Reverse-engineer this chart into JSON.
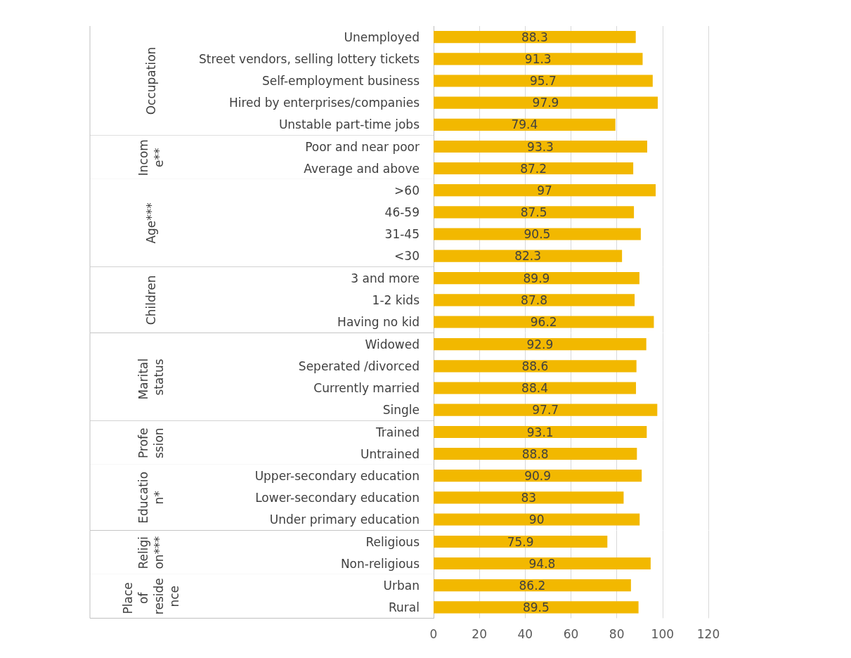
{
  "chart_data": [
    {
      "type": "bar",
      "orientation": "horizontal",
      "ylabel": "Occupation",
      "categories": [
        "Unemployed",
        "Street vendors, selling lottery tickets",
        "Self-employment business",
        "Hired by enterprises/companies",
        "Unstable part-time jobs"
      ],
      "values": [
        88.3,
        91.3,
        95.7,
        97.9,
        79.4
      ],
      "color": "#f2b800",
      "data_labels": true,
      "xlim": [
        0,
        120
      ],
      "xticks": [
        0,
        20,
        40,
        60,
        80,
        100,
        120
      ],
      "grid": "x",
      "tick_labels": "y"
    },
    {
      "type": "bar",
      "orientation": "horizontal",
      "ylabel": "Income**",
      "categories": [
        "Poor and near poor",
        "Average and above"
      ],
      "values": [
        93.3,
        87.2
      ],
      "color": "#f2b800",
      "data_labels": true,
      "xlim": [
        0,
        120
      ],
      "xticks": [
        0,
        20,
        40,
        60,
        80,
        100,
        120
      ],
      "grid": "x",
      "tick_labels": "y"
    },
    {
      "type": "bar",
      "orientation": "horizontal",
      "ylabel": "Age***",
      "categories": [
        ">60",
        "46-59",
        "31-45",
        "<30"
      ],
      "values": [
        97,
        87.5,
        90.5,
        82.3
      ],
      "color": "#f2b800",
      "data_labels": true,
      "xlim": [
        0,
        120
      ],
      "xticks": [
        0,
        20,
        40,
        60,
        80,
        100,
        120
      ],
      "grid": "x",
      "tick_labels": "y"
    },
    {
      "type": "bar",
      "orientation": "horizontal",
      "ylabel": "Children",
      "categories": [
        "3 and more",
        "1-2 kids",
        "Having no kid"
      ],
      "values": [
        89.9,
        87.8,
        96.2
      ],
      "color": "#f2b800",
      "data_labels": true,
      "xlim": [
        0,
        120
      ],
      "xticks": [
        0,
        20,
        40,
        60,
        80,
        100,
        120
      ],
      "grid": "x",
      "tick_labels": "y"
    },
    {
      "type": "bar",
      "orientation": "horizontal",
      "ylabel": "Marital status",
      "categories": [
        "Widowed",
        "Seperated /divorced",
        "Currently married",
        "Single"
      ],
      "values": [
        92.9,
        88.6,
        88.4,
        97.7
      ],
      "color": "#f2b800",
      "data_labels": true,
      "xlim": [
        0,
        120
      ],
      "xticks": [
        0,
        20,
        40,
        60,
        80,
        100,
        120
      ],
      "grid": "x",
      "tick_labels": "y"
    },
    {
      "type": "bar",
      "orientation": "horizontal",
      "ylabel": "Profession",
      "categories": [
        "Trained",
        "Untrained"
      ],
      "values": [
        93.1,
        88.8
      ],
      "color": "#f2b800",
      "data_labels": true,
      "xlim": [
        0,
        120
      ],
      "xticks": [
        0,
        20,
        40,
        60,
        80,
        100,
        120
      ],
      "grid": "x",
      "tick_labels": "y"
    },
    {
      "type": "bar",
      "orientation": "horizontal",
      "ylabel": "Education*",
      "categories": [
        "Upper-secondary education",
        "Lower-secondary education",
        "Under primary education"
      ],
      "values": [
        90.9,
        83,
        90
      ],
      "color": "#f2b800",
      "data_labels": true,
      "xlim": [
        0,
        120
      ],
      "xticks": [
        0,
        20,
        40,
        60,
        80,
        100,
        120
      ],
      "grid": "x",
      "tick_labels": "y"
    },
    {
      "type": "bar",
      "orientation": "horizontal",
      "ylabel": "Religion***",
      "categories": [
        "Religious",
        "Non-religious"
      ],
      "values": [
        75.9,
        94.8
      ],
      "color": "#f2b800",
      "data_labels": true,
      "xlim": [
        0,
        120
      ],
      "xticks": [
        0,
        20,
        40,
        60,
        80,
        100,
        120
      ],
      "grid": "x",
      "tick_labels": "y"
    },
    {
      "type": "bar",
      "orientation": "horizontal",
      "ylabel": "Place of residence",
      "categories": [
        "Urban",
        "Rural"
      ],
      "values": [
        86.2,
        89.5
      ],
      "color": "#f2b800",
      "data_labels": true,
      "xlim": [
        0,
        120
      ],
      "xticks": [
        0,
        20,
        40,
        60,
        80,
        100,
        120
      ],
      "grid": "x"
    }
  ]
}
